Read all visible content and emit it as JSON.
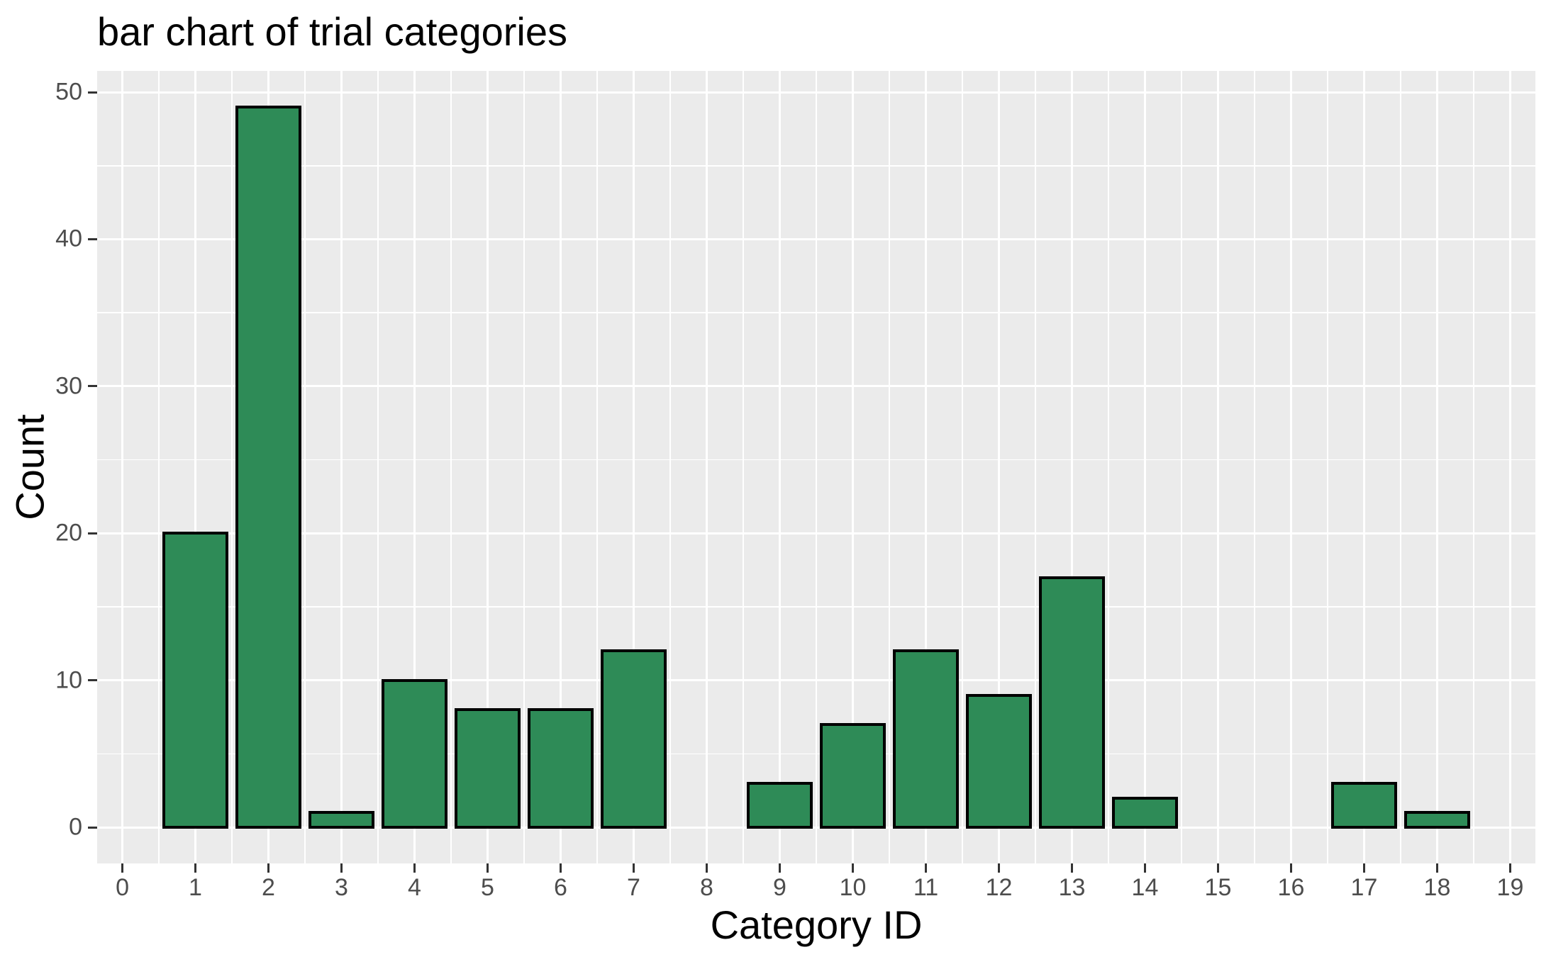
{
  "chart_data": {
    "type": "bar",
    "title": "bar chart of trial categories",
    "xlabel": "Category ID",
    "ylabel": "Count",
    "categories": [
      1,
      2,
      3,
      4,
      5,
      6,
      7,
      8,
      9,
      10,
      11,
      12,
      13,
      14,
      15,
      16,
      17,
      18
    ],
    "values": [
      20,
      49,
      1,
      10,
      8,
      8,
      12,
      0,
      3,
      7,
      12,
      9,
      17,
      2,
      0,
      0,
      3,
      1
    ],
    "x_ticks": [
      0,
      1,
      2,
      3,
      4,
      5,
      6,
      7,
      8,
      9,
      10,
      11,
      12,
      13,
      14,
      15,
      16,
      17,
      18,
      19
    ],
    "y_ticks": [
      0,
      10,
      20,
      30,
      40,
      50
    ],
    "x_minor": [
      0.5,
      1.5,
      2.5,
      3.5,
      4.5,
      5.5,
      6.5,
      7.5,
      8.5,
      9.5,
      10.5,
      11.5,
      12.5,
      13.5,
      14.5,
      15.5,
      16.5,
      17.5,
      18.5
    ],
    "y_minor": [
      5,
      15,
      25,
      35,
      45
    ],
    "xlim": [
      -0.345,
      19.345
    ],
    "ylim": [
      -2.45,
      51.45
    ],
    "bar_width": 0.9,
    "grid": "on",
    "legend_position": "none",
    "colors": {
      "bar_fill": "#2E8B57",
      "bar_stroke": "#000000",
      "panel_bg": "#EBEBEB",
      "gridline": "#FFFFFF",
      "tick_label": "#4D4D4D",
      "tick_mark": "#333333",
      "title_text": "#000000"
    }
  }
}
